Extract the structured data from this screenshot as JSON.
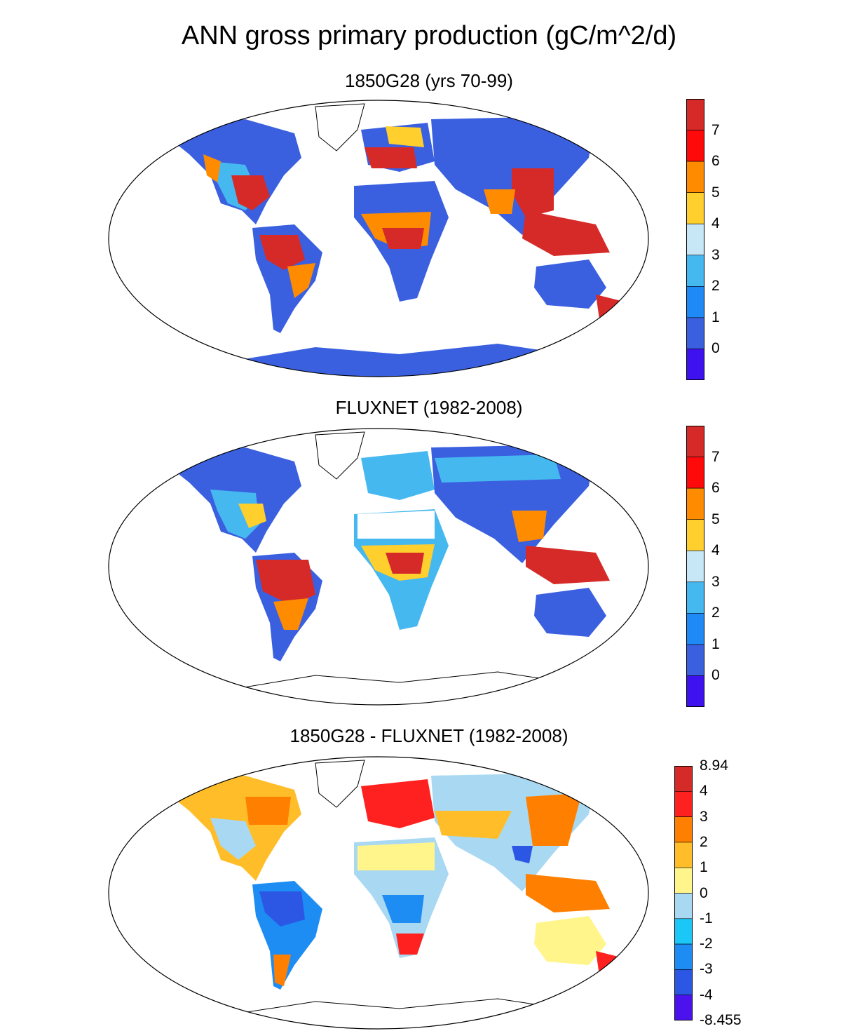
{
  "title": "ANN gross primary production (gC/m^2/d)",
  "panels": [
    {
      "id": "model",
      "title": "1850G28 (yrs 70-99)",
      "colors": [
        "#3d12ee",
        "#3a60e0",
        "#1f8af5",
        "#46b8f0",
        "#c7e6f6",
        "#ffcf2e",
        "#ff8c00",
        "#ff0a0a",
        "#d62a28"
      ],
      "labels": [
        "0",
        "1",
        "2",
        "3",
        "4",
        "5",
        "6",
        "7"
      ]
    },
    {
      "id": "obs",
      "title": "FLUXNET (1982-2008)",
      "colors": [
        "#3d12ee",
        "#3a60e0",
        "#1f8af5",
        "#46b8f0",
        "#c7e6f6",
        "#ffcf2e",
        "#ff8c00",
        "#ff0a0a",
        "#d62a28"
      ],
      "labels": [
        "0",
        "1",
        "2",
        "3",
        "4",
        "5",
        "6",
        "7"
      ]
    },
    {
      "id": "diff",
      "title": "1850G28 - FLUXNET (1982-2008)",
      "colors": [
        "#4b12ee",
        "#2b57e4",
        "#1d8cf3",
        "#1ac7f7",
        "#a9d8f2",
        "#fff58a",
        "#ffbe29",
        "#ff8000",
        "#ff2020",
        "#d42a28"
      ],
      "labels": [
        "-8.455",
        "-4",
        "-3",
        "-2",
        "-1",
        "0",
        "1",
        "2",
        "3",
        "4",
        "8.94"
      ]
    }
  ]
}
